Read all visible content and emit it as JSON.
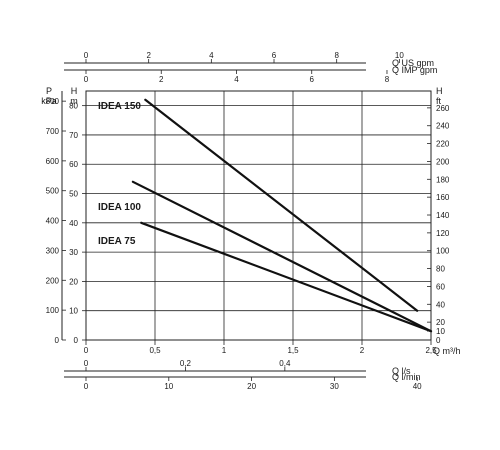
{
  "chart_data": {
    "type": "line",
    "title": "",
    "left_head": {
      "outer": "P",
      "inner": "H"
    },
    "left_units": {
      "outer": "kPa",
      "inner": "m"
    },
    "right_head": "H",
    "right_unit": "ft",
    "x_main": {
      "label": "Q m³/h",
      "range": [
        0,
        2.5
      ],
      "ticks": [
        "0",
        "0,5",
        "1",
        "1,5",
        "2",
        "2,5"
      ]
    },
    "x_us_gpm": {
      "label": "Q US gpm",
      "range": [
        0,
        11.01
      ],
      "ticks": [
        "0",
        "2",
        "4",
        "6",
        "8",
        "10"
      ]
    },
    "x_imp_gpm": {
      "label": "Q IMP gpm",
      "range": [
        0,
        9.17
      ],
      "ticks": [
        "0",
        "2",
        "4",
        "6",
        "8"
      ]
    },
    "x_ls": {
      "label": "Q l/s",
      "range": [
        0,
        0.694
      ],
      "ticks": [
        "0",
        "0,2",
        "0,4"
      ]
    },
    "x_lmin": {
      "label": "Q l/min",
      "range": [
        0,
        41.67
      ],
      "ticks": [
        "0",
        "10",
        "20",
        "30",
        "40"
      ]
    },
    "y_m": {
      "range": [
        0,
        85
      ],
      "ticks": [
        "0",
        "10",
        "20",
        "30",
        "40",
        "50",
        "60",
        "70",
        "80"
      ]
    },
    "y_kpa": {
      "range": [
        0,
        834
      ],
      "ticks": [
        "0",
        "100",
        "200",
        "300",
        "400",
        "500",
        "600",
        "700",
        "800"
      ]
    },
    "y_ft": {
      "range": [
        0,
        278.9
      ],
      "ticks": [
        "0",
        "10",
        "20",
        "40",
        "60",
        "80",
        "100",
        "120",
        "140",
        "160",
        "180",
        "200",
        "220",
        "240",
        "260"
      ]
    },
    "grid": true,
    "series": [
      {
        "name": "IDEA 150",
        "x": [
          0.43,
          2.4
        ],
        "y": [
          82,
          10
        ]
      },
      {
        "name": "IDEA 100",
        "x": [
          0.34,
          2.5
        ],
        "y": [
          54,
          3
        ]
      },
      {
        "name": "IDEA 75",
        "x": [
          0.4,
          2.5
        ],
        "y": [
          40,
          3
        ]
      }
    ]
  }
}
